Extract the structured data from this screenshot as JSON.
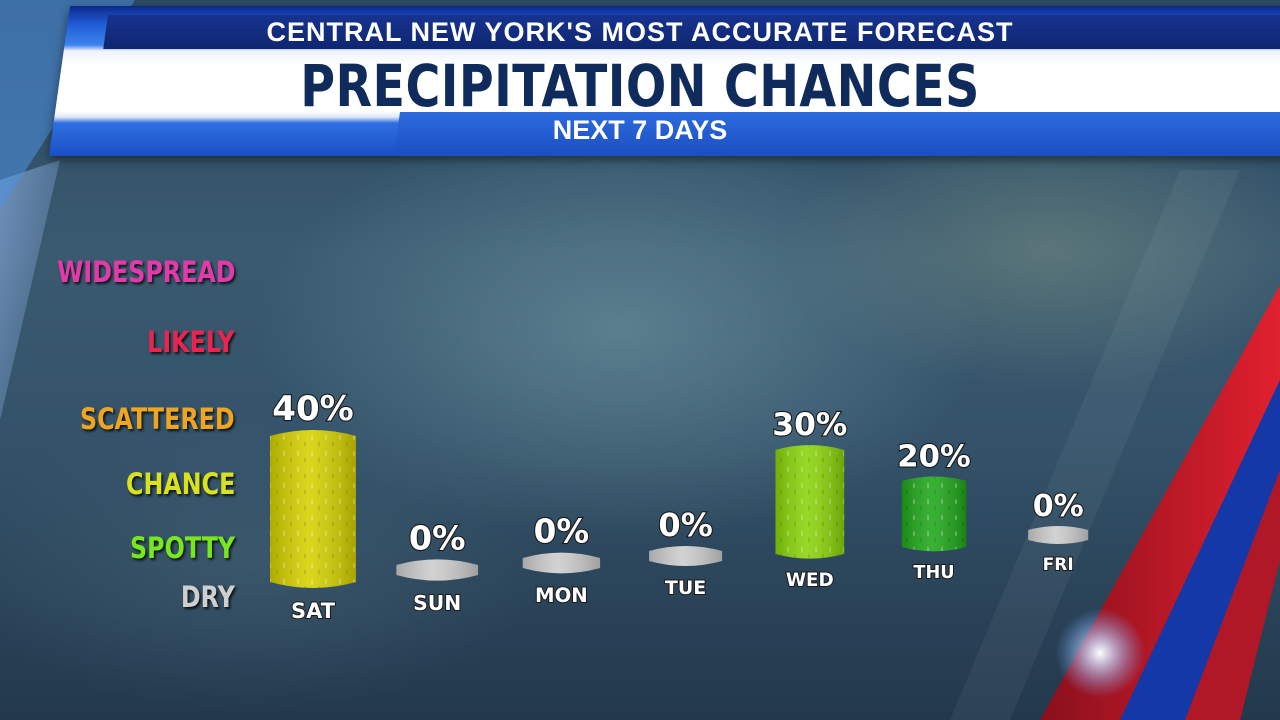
{
  "header": {
    "brand_line": "CENTRAL NEW YORK'S MOST ACCURATE FORECAST",
    "title": "PRECIPITATION CHANCES",
    "subtitle": "NEXT 7 DAYS"
  },
  "levels": [
    {
      "label": "WIDESPREAD",
      "color": "#e23aa8"
    },
    {
      "label": "LIKELY",
      "color": "#e8244f"
    },
    {
      "label": "SCATTERED",
      "color": "#f0a51f"
    },
    {
      "label": "CHANCE",
      "color": "#d9e21c"
    },
    {
      "label": "SPOTTY",
      "color": "#76e81c"
    },
    {
      "label": "DRY",
      "color": "#cfcfcf"
    }
  ],
  "chart_data": {
    "type": "bar",
    "title": "PRECIPITATION CHANCES",
    "categories": [
      "SAT",
      "SUN",
      "MON",
      "TUE",
      "WED",
      "THU",
      "FRI"
    ],
    "values": [
      40,
      0,
      0,
      0,
      30,
      20,
      0
    ],
    "value_labels": [
      "40%",
      "0%",
      "0%",
      "0%",
      "30%",
      "20%",
      "0%"
    ],
    "bar_colors": [
      "#d4d000",
      "#cccccc",
      "#cccccc",
      "#cccccc",
      "#8ad40a",
      "#1fa71a",
      "#cccccc"
    ],
    "ylim": [
      0,
      40
    ],
    "grid": false
  }
}
